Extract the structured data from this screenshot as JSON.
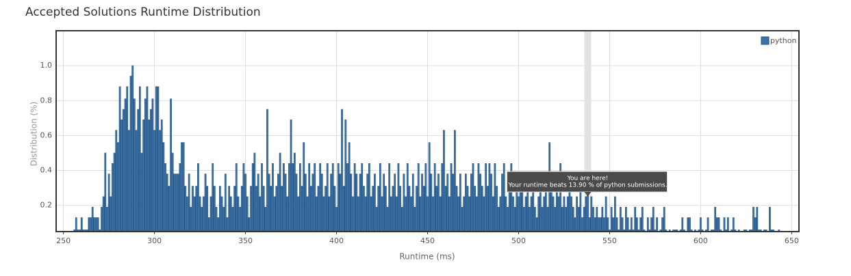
{
  "chart_data": {
    "type": "bar",
    "title": "Accepted Solutions Runtime Distribution",
    "xlabel": "Runtime (ms)",
    "ylabel": "Distribution (%)",
    "xlim": [
      246,
      654
    ],
    "ylim": [
      0.05,
      1.2
    ],
    "xticks": [
      250,
      300,
      350,
      400,
      450,
      500,
      550,
      600,
      650
    ],
    "yticks": [
      0.2,
      0.4,
      0.6,
      0.8,
      {
        "value": 1,
        "label": "1.0"
      }
    ],
    "grid": true,
    "legend": "upper right",
    "highlight": 538,
    "annotation": [
      "You are here!",
      "Your runtime beats 13.90 % of python submissions."
    ],
    "x": [
      256,
      257,
      258,
      259,
      260,
      261,
      262,
      263,
      264,
      265,
      266,
      267,
      268,
      269,
      270,
      271,
      272,
      273,
      274,
      275,
      276,
      277,
      278,
      279,
      280,
      281,
      282,
      283,
      284,
      285,
      286,
      287,
      288,
      289,
      290,
      291,
      292,
      293,
      294,
      295,
      296,
      297,
      298,
      299,
      300,
      301,
      302,
      303,
      304,
      305,
      306,
      307,
      308,
      309,
      310,
      311,
      312,
      313,
      314,
      315,
      316,
      317,
      318,
      319,
      320,
      321,
      322,
      323,
      324,
      325,
      326,
      327,
      328,
      329,
      330,
      331,
      332,
      333,
      334,
      335,
      336,
      337,
      338,
      339,
      340,
      341,
      342,
      343,
      344,
      345,
      346,
      347,
      348,
      349,
      350,
      351,
      352,
      353,
      354,
      355,
      356,
      357,
      358,
      359,
      360,
      361,
      362,
      363,
      364,
      365,
      366,
      367,
      368,
      369,
      370,
      371,
      372,
      373,
      374,
      375,
      376,
      377,
      378,
      379,
      380,
      381,
      382,
      383,
      384,
      385,
      386,
      387,
      388,
      389,
      390,
      391,
      392,
      393,
      394,
      395,
      396,
      397,
      398,
      399,
      400,
      401,
      402,
      403,
      404,
      405,
      406,
      407,
      408,
      409,
      410,
      411,
      412,
      413,
      414,
      415,
      416,
      417,
      418,
      419,
      420,
      421,
      422,
      423,
      424,
      425,
      426,
      427,
      428,
      429,
      430,
      431,
      432,
      433,
      434,
      435,
      436,
      437,
      438,
      439,
      440,
      441,
      442,
      443,
      444,
      445,
      446,
      447,
      448,
      449,
      450,
      451,
      452,
      453,
      454,
      455,
      456,
      457,
      458,
      459,
      460,
      461,
      462,
      463,
      464,
      465,
      466,
      467,
      468,
      469,
      470,
      471,
      472,
      473,
      474,
      475,
      476,
      477,
      478,
      479,
      480,
      481,
      482,
      483,
      484,
      485,
      486,
      487,
      488,
      489,
      490,
      491,
      492,
      493,
      494,
      495,
      496,
      497,
      498,
      499,
      500,
      501,
      502,
      503,
      504,
      505,
      506,
      507,
      508,
      509,
      510,
      511,
      512,
      513,
      514,
      515,
      516,
      517,
      518,
      519,
      520,
      521,
      522,
      523,
      524,
      525,
      526,
      527,
      528,
      529,
      530,
      531,
      532,
      533,
      534,
      535,
      536,
      537,
      538,
      539,
      540,
      541,
      542,
      543,
      544,
      545,
      546,
      547,
      548,
      549,
      550,
      551,
      552,
      553,
      554,
      555,
      556,
      557,
      558,
      559,
      560,
      561,
      562,
      563,
      564,
      565,
      566,
      567,
      568,
      569,
      570,
      571,
      572,
      573,
      574,
      575,
      576,
      577,
      578,
      579,
      580,
      581,
      582,
      583,
      584,
      585,
      586,
      587,
      588,
      589,
      590,
      591,
      592,
      593,
      594,
      595,
      596,
      597,
      598,
      599,
      600,
      601,
      602,
      603,
      604,
      605,
      606,
      607,
      608,
      609,
      610,
      611,
      612,
      613,
      614,
      615,
      616,
      617,
      618,
      619,
      620,
      621,
      622,
      623,
      624,
      625,
      626,
      627,
      628,
      629,
      630,
      631,
      632,
      633,
      634,
      635,
      636,
      637,
      638,
      639,
      640,
      641,
      642,
      643,
      644
    ],
    "series": [
      {
        "name": "python",
        "color": "#3d73a8",
        "values": [
          0.06,
          0.13,
          0.06,
          0.06,
          0.13,
          0.06,
          0.06,
          0.06,
          0.13,
          0.13,
          0.19,
          0.13,
          0.13,
          0.13,
          0.06,
          0.19,
          0.25,
          0.5,
          0.19,
          0.38,
          0.25,
          0.44,
          0.5,
          0.63,
          0.56,
          0.88,
          0.69,
          0.75,
          0.81,
          0.88,
          0.63,
          0.94,
          1.0,
          0.81,
          0.63,
          0.75,
          0.88,
          0.5,
          0.69,
          0.81,
          0.88,
          0.69,
          0.75,
          0.81,
          0.63,
          0.88,
          0.88,
          0.63,
          0.69,
          0.56,
          0.44,
          0.38,
          0.31,
          0.81,
          0.5,
          0.38,
          0.38,
          0.38,
          0.44,
          0.56,
          0.56,
          0.31,
          0.25,
          0.38,
          0.19,
          0.31,
          0.25,
          0.31,
          0.44,
          0.25,
          0.19,
          0.25,
          0.38,
          0.31,
          0.13,
          0.25,
          0.44,
          0.31,
          0.19,
          0.13,
          0.31,
          0.25,
          0.19,
          0.38,
          0.13,
          0.31,
          0.25,
          0.19,
          0.31,
          0.44,
          0.25,
          0.19,
          0.31,
          0.44,
          0.38,
          0.25,
          0.13,
          0.31,
          0.44,
          0.5,
          0.31,
          0.38,
          0.25,
          0.44,
          0.31,
          0.19,
          0.75,
          0.38,
          0.31,
          0.44,
          0.25,
          0.31,
          0.38,
          0.5,
          0.31,
          0.44,
          0.38,
          0.25,
          0.44,
          0.69,
          0.44,
          0.5,
          0.38,
          0.25,
          0.44,
          0.31,
          0.56,
          0.38,
          0.25,
          0.44,
          0.31,
          0.38,
          0.44,
          0.25,
          0.31,
          0.44,
          0.38,
          0.25,
          0.31,
          0.44,
          0.25,
          0.38,
          0.44,
          0.31,
          0.19,
          0.44,
          0.38,
          0.75,
          0.31,
          0.69,
          0.44,
          0.56,
          0.38,
          0.25,
          0.44,
          0.38,
          0.25,
          0.38,
          0.44,
          0.31,
          0.25,
          0.38,
          0.44,
          0.25,
          0.31,
          0.38,
          0.19,
          0.31,
          0.44,
          0.25,
          0.38,
          0.31,
          0.19,
          0.44,
          0.25,
          0.31,
          0.38,
          0.25,
          0.44,
          0.31,
          0.19,
          0.38,
          0.25,
          0.44,
          0.31,
          0.25,
          0.38,
          0.19,
          0.31,
          0.44,
          0.25,
          0.38,
          0.31,
          0.44,
          0.25,
          0.56,
          0.38,
          0.25,
          0.44,
          0.31,
          0.38,
          0.25,
          0.44,
          0.63,
          0.31,
          0.38,
          0.25,
          0.44,
          0.38,
          0.63,
          0.31,
          0.25,
          0.38,
          0.19,
          0.25,
          0.38,
          0.31,
          0.25,
          0.38,
          0.44,
          0.31,
          0.25,
          0.44,
          0.38,
          0.31,
          0.25,
          0.44,
          0.31,
          0.44,
          0.38,
          0.25,
          0.44,
          0.31,
          0.19,
          0.25,
          0.38,
          0.44,
          0.25,
          0.19,
          0.31,
          0.44,
          0.25,
          0.19,
          0.31,
          0.25,
          0.38,
          0.31,
          0.19,
          0.25,
          0.31,
          0.19,
          0.25,
          0.31,
          0.19,
          0.13,
          0.25,
          0.31,
          0.19,
          0.25,
          0.31,
          0.19,
          0.56,
          0.31,
          0.25,
          0.19,
          0.31,
          0.25,
          0.44,
          0.19,
          0.25,
          0.19,
          0.25,
          0.31,
          0.25,
          0.19,
          0.13,
          0.25,
          0.19,
          0.31,
          0.13,
          0.19,
          0.25,
          0.31,
          0.13,
          0.25,
          0.19,
          0.13,
          0.19,
          0.13,
          0.13,
          0.19,
          0.13,
          0.25,
          0.13,
          0.06,
          0.19,
          0.13,
          0.25,
          0.13,
          0.06,
          0.19,
          0.13,
          0.06,
          0.19,
          0.13,
          0.06,
          0.13,
          0.06,
          0.19,
          0.13,
          0.06,
          0.13,
          0.19,
          0.06,
          0,
          0.13,
          0.06,
          0.13,
          0.19,
          0.06,
          0.13,
          0,
          0.06,
          0.13,
          0.19,
          0.06,
          0,
          0.06,
          0,
          0.06,
          0.06,
          0.06,
          0,
          0.06,
          0.13,
          0.06,
          0,
          0.13,
          0.13,
          0.06,
          0,
          0.06,
          0,
          0.06,
          0.13,
          0.06,
          0,
          0.06,
          0.13,
          0,
          0.06,
          0.06,
          0.19,
          0.13,
          0.13,
          0.06,
          0,
          0.13,
          0.06,
          0.13,
          0,
          0.06,
          0.13,
          0.06,
          0,
          0.06,
          0,
          0,
          0.06,
          0.06,
          0,
          0.06,
          0.06,
          0.19,
          0.13,
          0.19,
          0.06,
          0.06,
          0,
          0.06,
          0.06,
          0,
          0.19,
          0.06,
          0.06,
          0,
          0,
          0.06,
          0
        ]
      }
    ]
  }
}
